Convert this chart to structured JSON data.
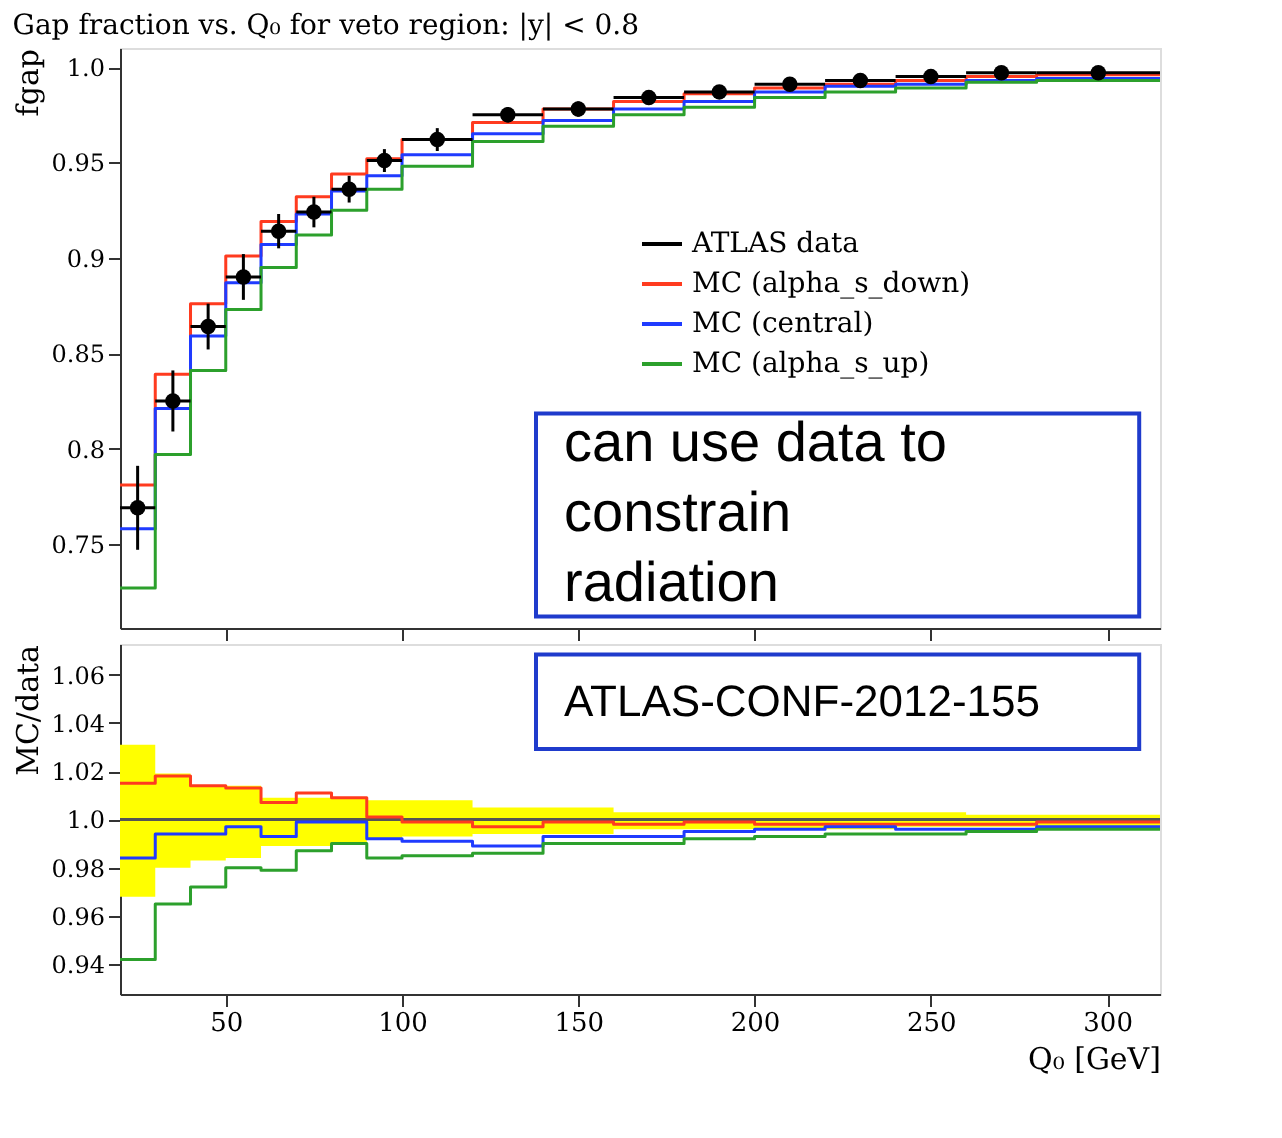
{
  "chart_data": [
    {
      "type": "step",
      "title": "Gap fraction vs. Q₀ for veto region: |y| < 0.8",
      "ylabel": "fgap",
      "xlim": [
        20,
        315
      ],
      "xticks": [
        50,
        100,
        150,
        200,
        250,
        300
      ],
      "ylim": [
        0.706,
        1.01
      ],
      "yticks": [
        0.75,
        {
          "value": 0.8,
          "label": "0.8"
        },
        0.85,
        {
          "value": 0.9,
          "label": "0.9"
        },
        0.95,
        {
          "value": 1.0,
          "label": "1.0"
        }
      ],
      "tick_labels": "y",
      "grid": false,
      "legend": "right",
      "annotations": [
        "can use data to constrain radiation"
      ],
      "series": [
        {
          "name": "ATLAS data",
          "type": "scatter",
          "marker": "circle",
          "color": "#000000",
          "x": [
            25,
            35,
            45,
            55,
            65,
            75,
            85,
            95,
            110,
            130,
            150,
            170,
            190,
            210,
            230,
            250,
            270,
            297.5
          ],
          "values": [
            0.769,
            0.825,
            0.864,
            0.89,
            0.914,
            0.924,
            0.936,
            0.951,
            0.962,
            0.975,
            0.978,
            0.984,
            0.987,
            0.991,
            0.993,
            0.995,
            0.997,
            0.997
          ],
          "errors": [
            0.022,
            0.016,
            0.012,
            0.012,
            0.009,
            0.008,
            0.007,
            0.006,
            0.006,
            0.004,
            0.004,
            0.003,
            0.003,
            0.002,
            0.002,
            0.002,
            0.002,
            0.002
          ],
          "xerrors": [
            5,
            5,
            5,
            5,
            5,
            5,
            5,
            5,
            10,
            10,
            10,
            10,
            10,
            10,
            10,
            10,
            10,
            17.5
          ]
        },
        {
          "name": "MC (alpha_s_down)",
          "color": "#ff3b1f",
          "x": [
            20,
            30,
            40,
            50,
            60,
            70,
            80,
            90,
            100,
            120,
            140,
            160,
            180,
            200,
            220,
            240,
            260,
            280,
            315
          ],
          "values": [
            0.781,
            0.839,
            0.876,
            0.901,
            0.919,
            0.932,
            0.944,
            0.952,
            0.962,
            0.971,
            0.978,
            0.982,
            0.986,
            0.989,
            0.991,
            0.993,
            0.995,
            0.996,
            0.996
          ]
        },
        {
          "name": "MC (central)",
          "color": "#1f3bff",
          "x": [
            20,
            30,
            40,
            50,
            60,
            70,
            80,
            90,
            100,
            120,
            140,
            160,
            180,
            200,
            220,
            240,
            260,
            280,
            315
          ],
          "values": [
            0.758,
            0.821,
            0.859,
            0.887,
            0.907,
            0.923,
            0.935,
            0.943,
            0.954,
            0.965,
            0.972,
            0.978,
            0.982,
            0.987,
            0.99,
            0.991,
            0.993,
            0.994,
            0.994
          ]
        },
        {
          "name": "MC (alpha_s_up)",
          "color": "#2ca02c",
          "x": [
            20,
            30,
            40,
            50,
            60,
            70,
            80,
            90,
            100,
            120,
            140,
            160,
            180,
            200,
            220,
            240,
            260,
            280,
            315
          ],
          "values": [
            0.727,
            0.797,
            0.841,
            0.873,
            0.895,
            0.912,
            0.925,
            0.936,
            0.948,
            0.961,
            0.969,
            0.975,
            0.979,
            0.984,
            0.987,
            0.989,
            0.992,
            0.993,
            0.993
          ]
        }
      ]
    },
    {
      "type": "step",
      "ylabel": "MC/data",
      "xlabel": "Q₀ [GeV]",
      "xlim": [
        20,
        315
      ],
      "xticks": [
        50,
        100,
        150,
        200,
        250,
        300
      ],
      "ylim": [
        0.9277,
        1.0727
      ],
      "yticks": [
        0.94,
        0.96,
        0.98,
        {
          "value": 1.0,
          "label": "1.0"
        },
        1.02,
        1.04,
        1.06
      ],
      "grid": false,
      "annotations": [
        "ATLAS-CONF-2012-155"
      ],
      "series": [
        {
          "color": "#555555",
          "x": [
            20,
            30,
            40,
            50,
            60,
            70,
            80,
            90,
            100,
            120,
            140,
            160,
            180,
            200,
            220,
            240,
            260,
            280,
            315
          ],
          "values": [
            1.0,
            1.0,
            1.0,
            1.0,
            1.0,
            1.0,
            1.0,
            1.0,
            1.0,
            1.0,
            1.0,
            1.0,
            1.0,
            1.0,
            1.0,
            1.0,
            1.0,
            1.0,
            1.0
          ],
          "lower": [
            0.968,
            0.98,
            0.983,
            0.984,
            0.989,
            0.989,
            0.99,
            0.992,
            0.993,
            0.994,
            0.994,
            0.996,
            0.996,
            0.996,
            0.996,
            0.997,
            0.997,
            0.997,
            0.997
          ],
          "upper": [
            1.031,
            1.019,
            1.014,
            1.014,
            1.009,
            1.009,
            1.009,
            1.008,
            1.008,
            1.005,
            1.005,
            1.003,
            1.003,
            1.003,
            1.003,
            1.003,
            1.002,
            1.002,
            1.002
          ]
        },
        {
          "color": "#ff3b1f",
          "x": [
            20,
            30,
            40,
            50,
            60,
            70,
            80,
            90,
            100,
            120,
            140,
            160,
            180,
            200,
            220,
            240,
            260,
            280,
            315
          ],
          "values": [
            1.015,
            1.018,
            1.014,
            1.013,
            1.007,
            1.011,
            1.009,
            1.001,
            0.999,
            0.997,
            0.999,
            0.998,
            0.999,
            0.998,
            0.998,
            0.998,
            0.998,
            0.999,
            0.999
          ]
        },
        {
          "color": "#1f3bff",
          "x": [
            20,
            30,
            40,
            50,
            60,
            70,
            80,
            90,
            100,
            120,
            140,
            160,
            180,
            200,
            220,
            240,
            260,
            280,
            315
          ],
          "values": [
            0.984,
            0.994,
            0.994,
            0.997,
            0.993,
            0.999,
            0.999,
            0.992,
            0.991,
            0.989,
            0.993,
            0.993,
            0.995,
            0.996,
            0.997,
            0.996,
            0.996,
            0.997,
            0.997
          ]
        },
        {
          "color": "#2ca02c",
          "x": [
            20,
            30,
            40,
            50,
            60,
            70,
            80,
            90,
            100,
            120,
            140,
            160,
            180,
            200,
            220,
            240,
            260,
            280,
            315
          ],
          "values": [
            0.942,
            0.965,
            0.972,
            0.98,
            0.979,
            0.987,
            0.99,
            0.984,
            0.985,
            0.986,
            0.99,
            0.99,
            0.992,
            0.993,
            0.994,
            0.994,
            0.995,
            0.996,
            0.996
          ]
        }
      ]
    }
  ]
}
